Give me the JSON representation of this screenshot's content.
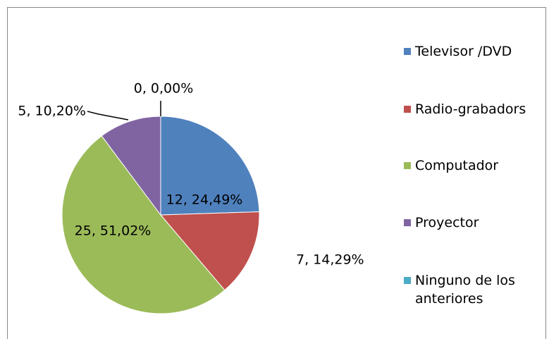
{
  "chart_data": {
    "type": "pie",
    "categories": [
      "Televisor /DVD",
      "Radio-grabadors",
      "Computador",
      "Proyector",
      "Ninguno de los anteriores"
    ],
    "values": [
      12,
      7,
      25,
      5,
      0
    ],
    "value_labels": [
      "12, 24,49%",
      "7, 14,29%",
      "25, 51,02%",
      "5, 10,20%",
      "0, 0,00%"
    ],
    "colors": [
      "#4f81bd",
      "#c0504d",
      "#9bbb59",
      "#8064a2",
      "#4bacc6"
    ],
    "legend": "right"
  }
}
